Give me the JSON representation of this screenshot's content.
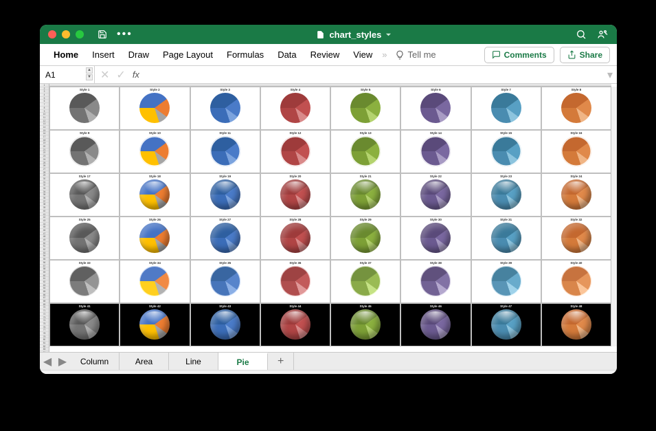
{
  "window": {
    "title": "chart_styles",
    "traffic_colors": [
      "#ff5f57",
      "#febc2e",
      "#28c840"
    ],
    "titlebar_bg": "#1a7a46"
  },
  "ribbon": {
    "tabs": [
      "Home",
      "Insert",
      "Draw",
      "Page Layout",
      "Formulas",
      "Data",
      "Review",
      "View"
    ],
    "active_tab": "Home",
    "tell_me": "Tell me",
    "comments": "Comments",
    "share": "Share"
  },
  "formula_bar": {
    "name_box": "A1",
    "fx_label": "fx",
    "formula": ""
  },
  "sheet_tabs": {
    "tabs": [
      "Column",
      "Area",
      "Line",
      "Pie"
    ],
    "active": "Pie"
  },
  "pie_data": {
    "slices": [
      40,
      20,
      10,
      30
    ],
    "angles_deg": [
      0,
      144,
      216,
      252,
      360
    ]
  },
  "palettes": {
    "grayscale": [
      "#595959",
      "#898989",
      "#b0b0b0",
      "#737373"
    ],
    "office": [
      "#4472c4",
      "#ed7d31",
      "#a5a5a5",
      "#ffc000"
    ],
    "blue": [
      "#2e5fa0",
      "#4a7bc8",
      "#7ba3de",
      "#3b6db8"
    ],
    "red": [
      "#9e3b3b",
      "#c15050",
      "#d98a8a",
      "#b04545"
    ],
    "green": [
      "#6a8a2f",
      "#8bb03f",
      "#b4d36e",
      "#7da036"
    ],
    "purple": [
      "#5a4a7a",
      "#7a68a0",
      "#a89bc4",
      "#6b5a90"
    ],
    "teal": [
      "#3a7a9a",
      "#58a0c4",
      "#8cc4de",
      "#4a8cb0"
    ],
    "orange": [
      "#c4682f",
      "#e0894a",
      "#f0b585",
      "#d47a3a"
    ]
  },
  "palette_order": [
    "grayscale",
    "office",
    "blue",
    "red",
    "green",
    "purple",
    "teal",
    "orange"
  ],
  "rows": [
    {
      "row_index": 1,
      "style_start": 1,
      "bg": "white",
      "effect": "flat"
    },
    {
      "row_index": 2,
      "style_start": 9,
      "bg": "white",
      "effect": "ring"
    },
    {
      "row_index": 3,
      "style_start": 17,
      "bg": "white",
      "effect": "gloss3d"
    },
    {
      "row_index": 4,
      "style_start": 25,
      "bg": "white",
      "effect": "bevel"
    },
    {
      "row_index": 5,
      "style_start": 33,
      "bg": "white",
      "effect": "soft"
    },
    {
      "row_index": 6,
      "style_start": 41,
      "bg": "black",
      "effect": "gloss3d"
    }
  ],
  "label_prefix": "Style "
}
